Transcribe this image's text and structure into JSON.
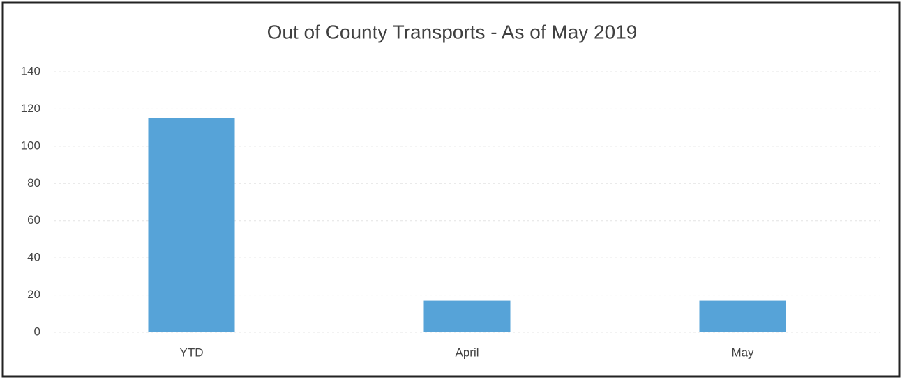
{
  "chart_data": {
    "type": "bar",
    "title": "Out of County Transports - As of May 2019",
    "categories": [
      "YTD",
      "April",
      "May"
    ],
    "values": [
      115,
      17,
      17
    ],
    "color": "#56a3d8",
    "ylim": [
      0,
      140
    ],
    "yticks": [
      0,
      20,
      40,
      60,
      80,
      100,
      120,
      140
    ],
    "grid": true
  }
}
